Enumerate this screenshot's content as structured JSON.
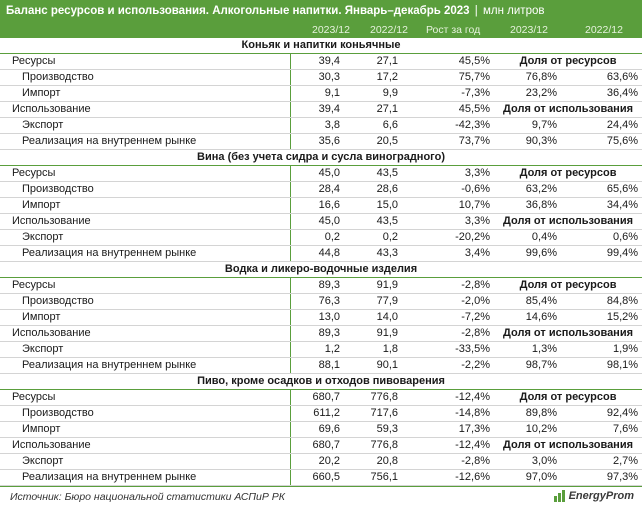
{
  "header": {
    "title": "Баланс ресурсов и использования. Алкогольные напитки. Январь–декабрь 2023",
    "separator": "|",
    "unit": "млн литров"
  },
  "columns": [
    "2023/12",
    "2022/12",
    "Рост за год",
    "2023/12",
    "2022/12"
  ],
  "sections": [
    {
      "name": "Коньяк и напитки коньячные",
      "rows": [
        {
          "label": "Ресурсы",
          "v2023": "39,4",
          "v2022": "27,1",
          "growth": "45,5%",
          "share_head": "Доля от ресурсов"
        },
        {
          "label": "Производство",
          "v2023": "30,3",
          "v2022": "17,2",
          "growth": "75,7%",
          "s2023": "76,8%",
          "s2022": "63,6%"
        },
        {
          "label": "Импорт",
          "v2023": "9,1",
          "v2022": "9,9",
          "growth": "-7,3%",
          "s2023": "23,2%",
          "s2022": "36,4%"
        },
        {
          "label": "Использование",
          "v2023": "39,4",
          "v2022": "27,1",
          "growth": "45,5%",
          "share_head": "Доля от использования"
        },
        {
          "label": "Экспорт",
          "v2023": "3,8",
          "v2022": "6,6",
          "growth": "-42,3%",
          "s2023": "9,7%",
          "s2022": "24,4%"
        },
        {
          "label": "Реализация на внутреннем рынке",
          "v2023": "35,6",
          "v2022": "20,5",
          "growth": "73,7%",
          "s2023": "90,3%",
          "s2022": "75,6%"
        }
      ]
    },
    {
      "name": "Вина (без учета сидра и сусла виноградного)",
      "rows": [
        {
          "label": "Ресурсы",
          "v2023": "45,0",
          "v2022": "43,5",
          "growth": "3,3%",
          "share_head": "Доля от ресурсов"
        },
        {
          "label": "Производство",
          "v2023": "28,4",
          "v2022": "28,6",
          "growth": "-0,6%",
          "s2023": "63,2%",
          "s2022": "65,6%"
        },
        {
          "label": "Импорт",
          "v2023": "16,6",
          "v2022": "15,0",
          "growth": "10,7%",
          "s2023": "36,8%",
          "s2022": "34,4%"
        },
        {
          "label": "Использование",
          "v2023": "45,0",
          "v2022": "43,5",
          "growth": "3,3%",
          "share_head": "Доля от использования"
        },
        {
          "label": "Экспорт",
          "v2023": "0,2",
          "v2022": "0,2",
          "growth": "-20,2%",
          "s2023": "0,4%",
          "s2022": "0,6%"
        },
        {
          "label": "Реализация на внутреннем рынке",
          "v2023": "44,8",
          "v2022": "43,3",
          "growth": "3,4%",
          "s2023": "99,6%",
          "s2022": "99,4%"
        }
      ]
    },
    {
      "name": "Водка и ликеро-водочные изделия",
      "rows": [
        {
          "label": "Ресурсы",
          "v2023": "89,3",
          "v2022": "91,9",
          "growth": "-2,8%",
          "share_head": "Доля от ресурсов"
        },
        {
          "label": "Производство",
          "v2023": "76,3",
          "v2022": "77,9",
          "growth": "-2,0%",
          "s2023": "85,4%",
          "s2022": "84,8%"
        },
        {
          "label": "Импорт",
          "v2023": "13,0",
          "v2022": "14,0",
          "growth": "-7,2%",
          "s2023": "14,6%",
          "s2022": "15,2%"
        },
        {
          "label": "Использование",
          "v2023": "89,3",
          "v2022": "91,9",
          "growth": "-2,8%",
          "share_head": "Доля от использования"
        },
        {
          "label": "Экспорт",
          "v2023": "1,2",
          "v2022": "1,8",
          "growth": "-33,5%",
          "s2023": "1,3%",
          "s2022": "1,9%"
        },
        {
          "label": "Реализация на внутреннем рынке",
          "v2023": "88,1",
          "v2022": "90,1",
          "growth": "-2,2%",
          "s2023": "98,7%",
          "s2022": "98,1%"
        }
      ]
    },
    {
      "name": "Пиво, кроме осадков и отходов пивоварения",
      "rows": [
        {
          "label": "Ресурсы",
          "v2023": "680,7",
          "v2022": "776,8",
          "growth": "-12,4%",
          "share_head": "Доля от ресурсов"
        },
        {
          "label": "Производство",
          "v2023": "611,2",
          "v2022": "717,6",
          "growth": "-14,8%",
          "s2023": "89,8%",
          "s2022": "92,4%"
        },
        {
          "label": "Импорт",
          "v2023": "69,6",
          "v2022": "59,3",
          "growth": "17,3%",
          "s2023": "10,2%",
          "s2022": "7,6%"
        },
        {
          "label": "Использование",
          "v2023": "680,7",
          "v2022": "776,8",
          "growth": "-12,4%",
          "share_head": "Доля от использования"
        },
        {
          "label": "Экспорт",
          "v2023": "20,2",
          "v2022": "20,8",
          "growth": "-2,8%",
          "s2023": "3,0%",
          "s2022": "2,7%"
        },
        {
          "label": "Реализация на внутреннем рынке",
          "v2023": "660,5",
          "v2022": "756,1",
          "growth": "-12,6%",
          "s2023": "97,0%",
          "s2022": "97,3%"
        }
      ]
    }
  ],
  "footer": {
    "source": "Источник: Бюро национальной статистики АСПиР РК",
    "logo": "EnergyProm"
  },
  "colors": {
    "accent": "#5a9e3c",
    "grid_line": "#d4d4d4"
  }
}
